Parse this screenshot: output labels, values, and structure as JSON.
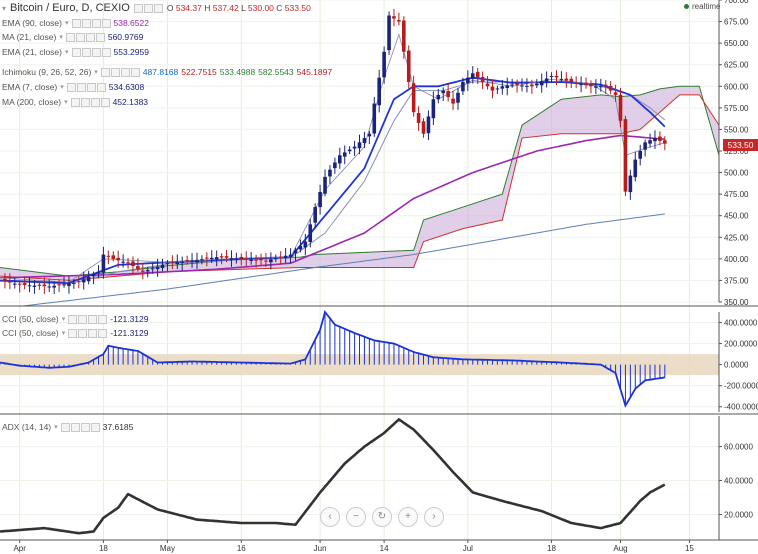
{
  "header": {
    "symbol": "Bitcoin / Euro, D, CEXIO",
    "open_label": "O",
    "open": "534.37",
    "high_label": "H",
    "high": "537.42",
    "low_label": "L",
    "low": "530.00",
    "close_label": "C",
    "close": "533.50",
    "realtime": "realtime"
  },
  "price_tag": "533.50",
  "legend": [
    {
      "label": "EMA (90, close)",
      "values": [
        "538.6522"
      ],
      "colors": [
        "#9c27b0"
      ]
    },
    {
      "label": "MA (21, close)",
      "values": [
        "560.9769"
      ],
      "colors": [
        "#1a237e"
      ]
    },
    {
      "label": "EMA (21, close)",
      "values": [
        "553.2959"
      ],
      "colors": [
        "#1a237e"
      ]
    },
    {
      "label": "Ichimoku (9, 26, 52, 26)",
      "values": [
        "487.8168",
        "522.7515",
        "533.4988",
        "582.5543",
        "545.1897"
      ],
      "colors": [
        "#1565c0",
        "#b71c1c",
        "#2e7d32",
        "#2e7d32",
        "#b71c1c"
      ]
    },
    {
      "label": "EMA (7, close)",
      "values": [
        "534.6308"
      ],
      "colors": [
        "#1a237e"
      ]
    },
    {
      "label": "MA (200, close)",
      "values": [
        "452.1383"
      ],
      "colors": [
        "#1a237e"
      ]
    }
  ],
  "cci_legend": [
    {
      "label": "CCI (50, close)",
      "value": "-121.3129"
    },
    {
      "label": "CCI (50, close)",
      "value": "-121.3129"
    }
  ],
  "adx_legend": {
    "label": "ADX (14, 14)",
    "value": "37.6185"
  },
  "nav_icons": [
    "chevron-left-icon",
    "zoom-out-icon",
    "reset-icon",
    "zoom-in-icon",
    "chevron-right-icon"
  ],
  "colors": {
    "up": "#1a237e",
    "down": "#b71c1c",
    "ema90": "#9c27b0",
    "cloud": "#c9a6d6",
    "adx": "#333333",
    "cci": "#1a33d6",
    "band": "#e9d7c0"
  },
  "chart_data": [
    {
      "type": "candlestick",
      "title": "Bitcoin / Euro, D, CEXIO",
      "ylim": [
        350,
        700
      ],
      "yticks": [
        "700.00",
        "675.00",
        "650.00",
        "625.00",
        "600.00",
        "575.00",
        "550.00",
        "525.00",
        "500.00",
        "475.00",
        "450.00",
        "425.00",
        "400.00",
        "375.00",
        "350.00"
      ],
      "x_range_days": [
        -4,
        142
      ],
      "xticks": [
        {
          "label": "Apr",
          "day": 0
        },
        {
          "label": "18",
          "day": 17
        },
        {
          "label": "May",
          "day": 30
        },
        {
          "label": "16",
          "day": 45
        },
        {
          "label": "Jun",
          "day": 61
        },
        {
          "label": "14",
          "day": 74
        },
        {
          "label": "Jul",
          "day": 91
        },
        {
          "label": "18",
          "day": 108
        },
        {
          "label": "Aug",
          "day": 122
        },
        {
          "label": "15",
          "day": 136
        }
      ],
      "close_anchors": [
        [
          -4,
          375
        ],
        [
          0,
          370
        ],
        [
          6,
          368
        ],
        [
          12,
          373
        ],
        [
          16,
          385
        ],
        [
          17,
          405
        ],
        [
          19,
          400
        ],
        [
          22,
          395
        ],
        [
          25,
          385
        ],
        [
          30,
          395
        ],
        [
          35,
          398
        ],
        [
          40,
          402
        ],
        [
          45,
          400
        ],
        [
          50,
          398
        ],
        [
          55,
          405
        ],
        [
          58,
          420
        ],
        [
          60,
          460
        ],
        [
          62,
          495
        ],
        [
          65,
          520
        ],
        [
          68,
          530
        ],
        [
          71,
          545
        ],
        [
          72,
          580
        ],
        [
          74,
          640
        ],
        [
          75,
          682
        ],
        [
          77,
          675
        ],
        [
          78,
          640
        ],
        [
          80,
          570
        ],
        [
          82,
          545
        ],
        [
          84,
          585
        ],
        [
          86,
          595
        ],
        [
          88,
          580
        ],
        [
          90,
          605
        ],
        [
          92,
          615
        ],
        [
          94,
          605
        ],
        [
          96,
          595
        ],
        [
          98,
          600
        ],
        [
          100,
          602
        ],
        [
          104,
          600
        ],
        [
          108,
          612
        ],
        [
          112,
          605
        ],
        [
          116,
          600
        ],
        [
          119,
          600
        ],
        [
          121,
          590
        ],
        [
          122,
          560
        ],
        [
          123,
          478
        ],
        [
          125,
          515
        ],
        [
          127,
          535
        ],
        [
          129,
          540
        ],
        [
          131,
          533.5
        ]
      ],
      "overlays": {
        "ema7": [
          [
            -4,
            378
          ],
          [
            10,
            373
          ],
          [
            17,
            400
          ],
          [
            30,
            396
          ],
          [
            45,
            401
          ],
          [
            55,
            402
          ],
          [
            62,
            480
          ],
          [
            70,
            530
          ],
          [
            74,
            610
          ],
          [
            77,
            660
          ],
          [
            80,
            600
          ],
          [
            85,
            585
          ],
          [
            92,
            607
          ],
          [
            100,
            600
          ],
          [
            108,
            608
          ],
          [
            116,
            603
          ],
          [
            121,
            585
          ],
          [
            123,
            520
          ],
          [
            127,
            528
          ],
          [
            131,
            534.6
          ]
        ],
        "ema21": [
          [
            -4,
            375
          ],
          [
            10,
            372
          ],
          [
            20,
            393
          ],
          [
            30,
            396
          ],
          [
            45,
            400
          ],
          [
            55,
            402
          ],
          [
            62,
            450
          ],
          [
            70,
            505
          ],
          [
            76,
            585
          ],
          [
            80,
            600
          ],
          [
            85,
            600
          ],
          [
            92,
            610
          ],
          [
            100,
            604
          ],
          [
            110,
            605
          ],
          [
            118,
            602
          ],
          [
            124,
            590
          ],
          [
            128,
            570
          ],
          [
            131,
            553.3
          ]
        ],
        "ma21": [
          [
            -4,
            374
          ],
          [
            10,
            371
          ],
          [
            20,
            385
          ],
          [
            30,
            394
          ],
          [
            45,
            399
          ],
          [
            55,
            401
          ],
          [
            62,
            430
          ],
          [
            70,
            490
          ],
          [
            76,
            560
          ],
          [
            80,
            595
          ],
          [
            86,
            595
          ],
          [
            92,
            605
          ],
          [
            100,
            605
          ],
          [
            110,
            605
          ],
          [
            118,
            600
          ],
          [
            124,
            590
          ],
          [
            128,
            575
          ],
          [
            131,
            561
          ]
        ],
        "ema90": [
          [
            -4,
            378
          ],
          [
            20,
            382
          ],
          [
            40,
            388
          ],
          [
            55,
            395
          ],
          [
            70,
            430
          ],
          [
            80,
            470
          ],
          [
            92,
            500
          ],
          [
            105,
            525
          ],
          [
            115,
            537
          ],
          [
            122,
            543
          ],
          [
            131,
            538.65
          ]
        ],
        "ma200": [
          [
            0,
            345
          ],
          [
            30,
            365
          ],
          [
            60,
            390
          ],
          [
            80,
            405
          ],
          [
            100,
            425
          ],
          [
            115,
            440
          ],
          [
            131,
            452.1
          ]
        ]
      },
      "cloud": {
        "upper": [
          [
            -4,
            390
          ],
          [
            10,
            380
          ],
          [
            20,
            385
          ],
          [
            30,
            392
          ],
          [
            45,
            400
          ],
          [
            57,
            402
          ],
          [
            60,
            405
          ],
          [
            80,
            410
          ],
          [
            82,
            445
          ],
          [
            90,
            460
          ],
          [
            98,
            475
          ],
          [
            102,
            555
          ],
          [
            110,
            585
          ],
          [
            118,
            590
          ],
          [
            122,
            588
          ],
          [
            126,
            590
          ],
          [
            130,
            597
          ],
          [
            134,
            600
          ],
          [
            138,
            600
          ],
          [
            142,
            520
          ]
        ],
        "lower": [
          [
            -4,
            380
          ],
          [
            10,
            375
          ],
          [
            20,
            380
          ],
          [
            30,
            385
          ],
          [
            45,
            388
          ],
          [
            57,
            390
          ],
          [
            60,
            390
          ],
          [
            80,
            390
          ],
          [
            82,
            420
          ],
          [
            90,
            435
          ],
          [
            98,
            445
          ],
          [
            102,
            540
          ],
          [
            110,
            545
          ],
          [
            118,
            545
          ],
          [
            122,
            545
          ],
          [
            126,
            550
          ],
          [
            130,
            570
          ],
          [
            134,
            590
          ],
          [
            138,
            590
          ],
          [
            142,
            555
          ]
        ]
      }
    },
    {
      "type": "bar",
      "title": "CCI (50, close)",
      "ylim": [
        -450,
        500
      ],
      "yticks": [
        "400.0000",
        "200.0000",
        "0.0000",
        "-200.0000",
        "-400.0000"
      ],
      "band": [
        -100,
        100
      ],
      "anchors": [
        [
          -4,
          20
        ],
        [
          0,
          -10
        ],
        [
          6,
          -30
        ],
        [
          10,
          -20
        ],
        [
          14,
          20
        ],
        [
          17,
          100
        ],
        [
          18,
          180
        ],
        [
          20,
          160
        ],
        [
          24,
          130
        ],
        [
          28,
          20
        ],
        [
          35,
          30
        ],
        [
          45,
          20
        ],
        [
          55,
          10
        ],
        [
          58,
          50
        ],
        [
          61,
          330
        ],
        [
          62,
          500
        ],
        [
          64,
          380
        ],
        [
          68,
          300
        ],
        [
          72,
          230
        ],
        [
          76,
          200
        ],
        [
          80,
          120
        ],
        [
          84,
          70
        ],
        [
          90,
          50
        ],
        [
          100,
          40
        ],
        [
          110,
          20
        ],
        [
          118,
          0
        ],
        [
          121,
          -80
        ],
        [
          123,
          -390
        ],
        [
          125,
          -230
        ],
        [
          127,
          -150
        ],
        [
          131,
          -121.3
        ]
      ]
    },
    {
      "type": "line",
      "title": "ADX (14, 14)",
      "ylim": [
        5,
        78
      ],
      "yticks": [
        "60.0000",
        "40.0000",
        "20.0000"
      ],
      "anchors": [
        [
          -4,
          10
        ],
        [
          5,
          12
        ],
        [
          12,
          9
        ],
        [
          15,
          10
        ],
        [
          17,
          18
        ],
        [
          20,
          24
        ],
        [
          22,
          32
        ],
        [
          28,
          23
        ],
        [
          36,
          17
        ],
        [
          45,
          15
        ],
        [
          52,
          15
        ],
        [
          56,
          14
        ],
        [
          61,
          33
        ],
        [
          66,
          50
        ],
        [
          70,
          60
        ],
        [
          74,
          68
        ],
        [
          77,
          76
        ],
        [
          80,
          70
        ],
        [
          84,
          58
        ],
        [
          88,
          45
        ],
        [
          92,
          33
        ],
        [
          98,
          28
        ],
        [
          106,
          22
        ],
        [
          112,
          15
        ],
        [
          118,
          12
        ],
        [
          122,
          15
        ],
        [
          126,
          28
        ],
        [
          128,
          33
        ],
        [
          131,
          37.6
        ]
      ]
    }
  ]
}
